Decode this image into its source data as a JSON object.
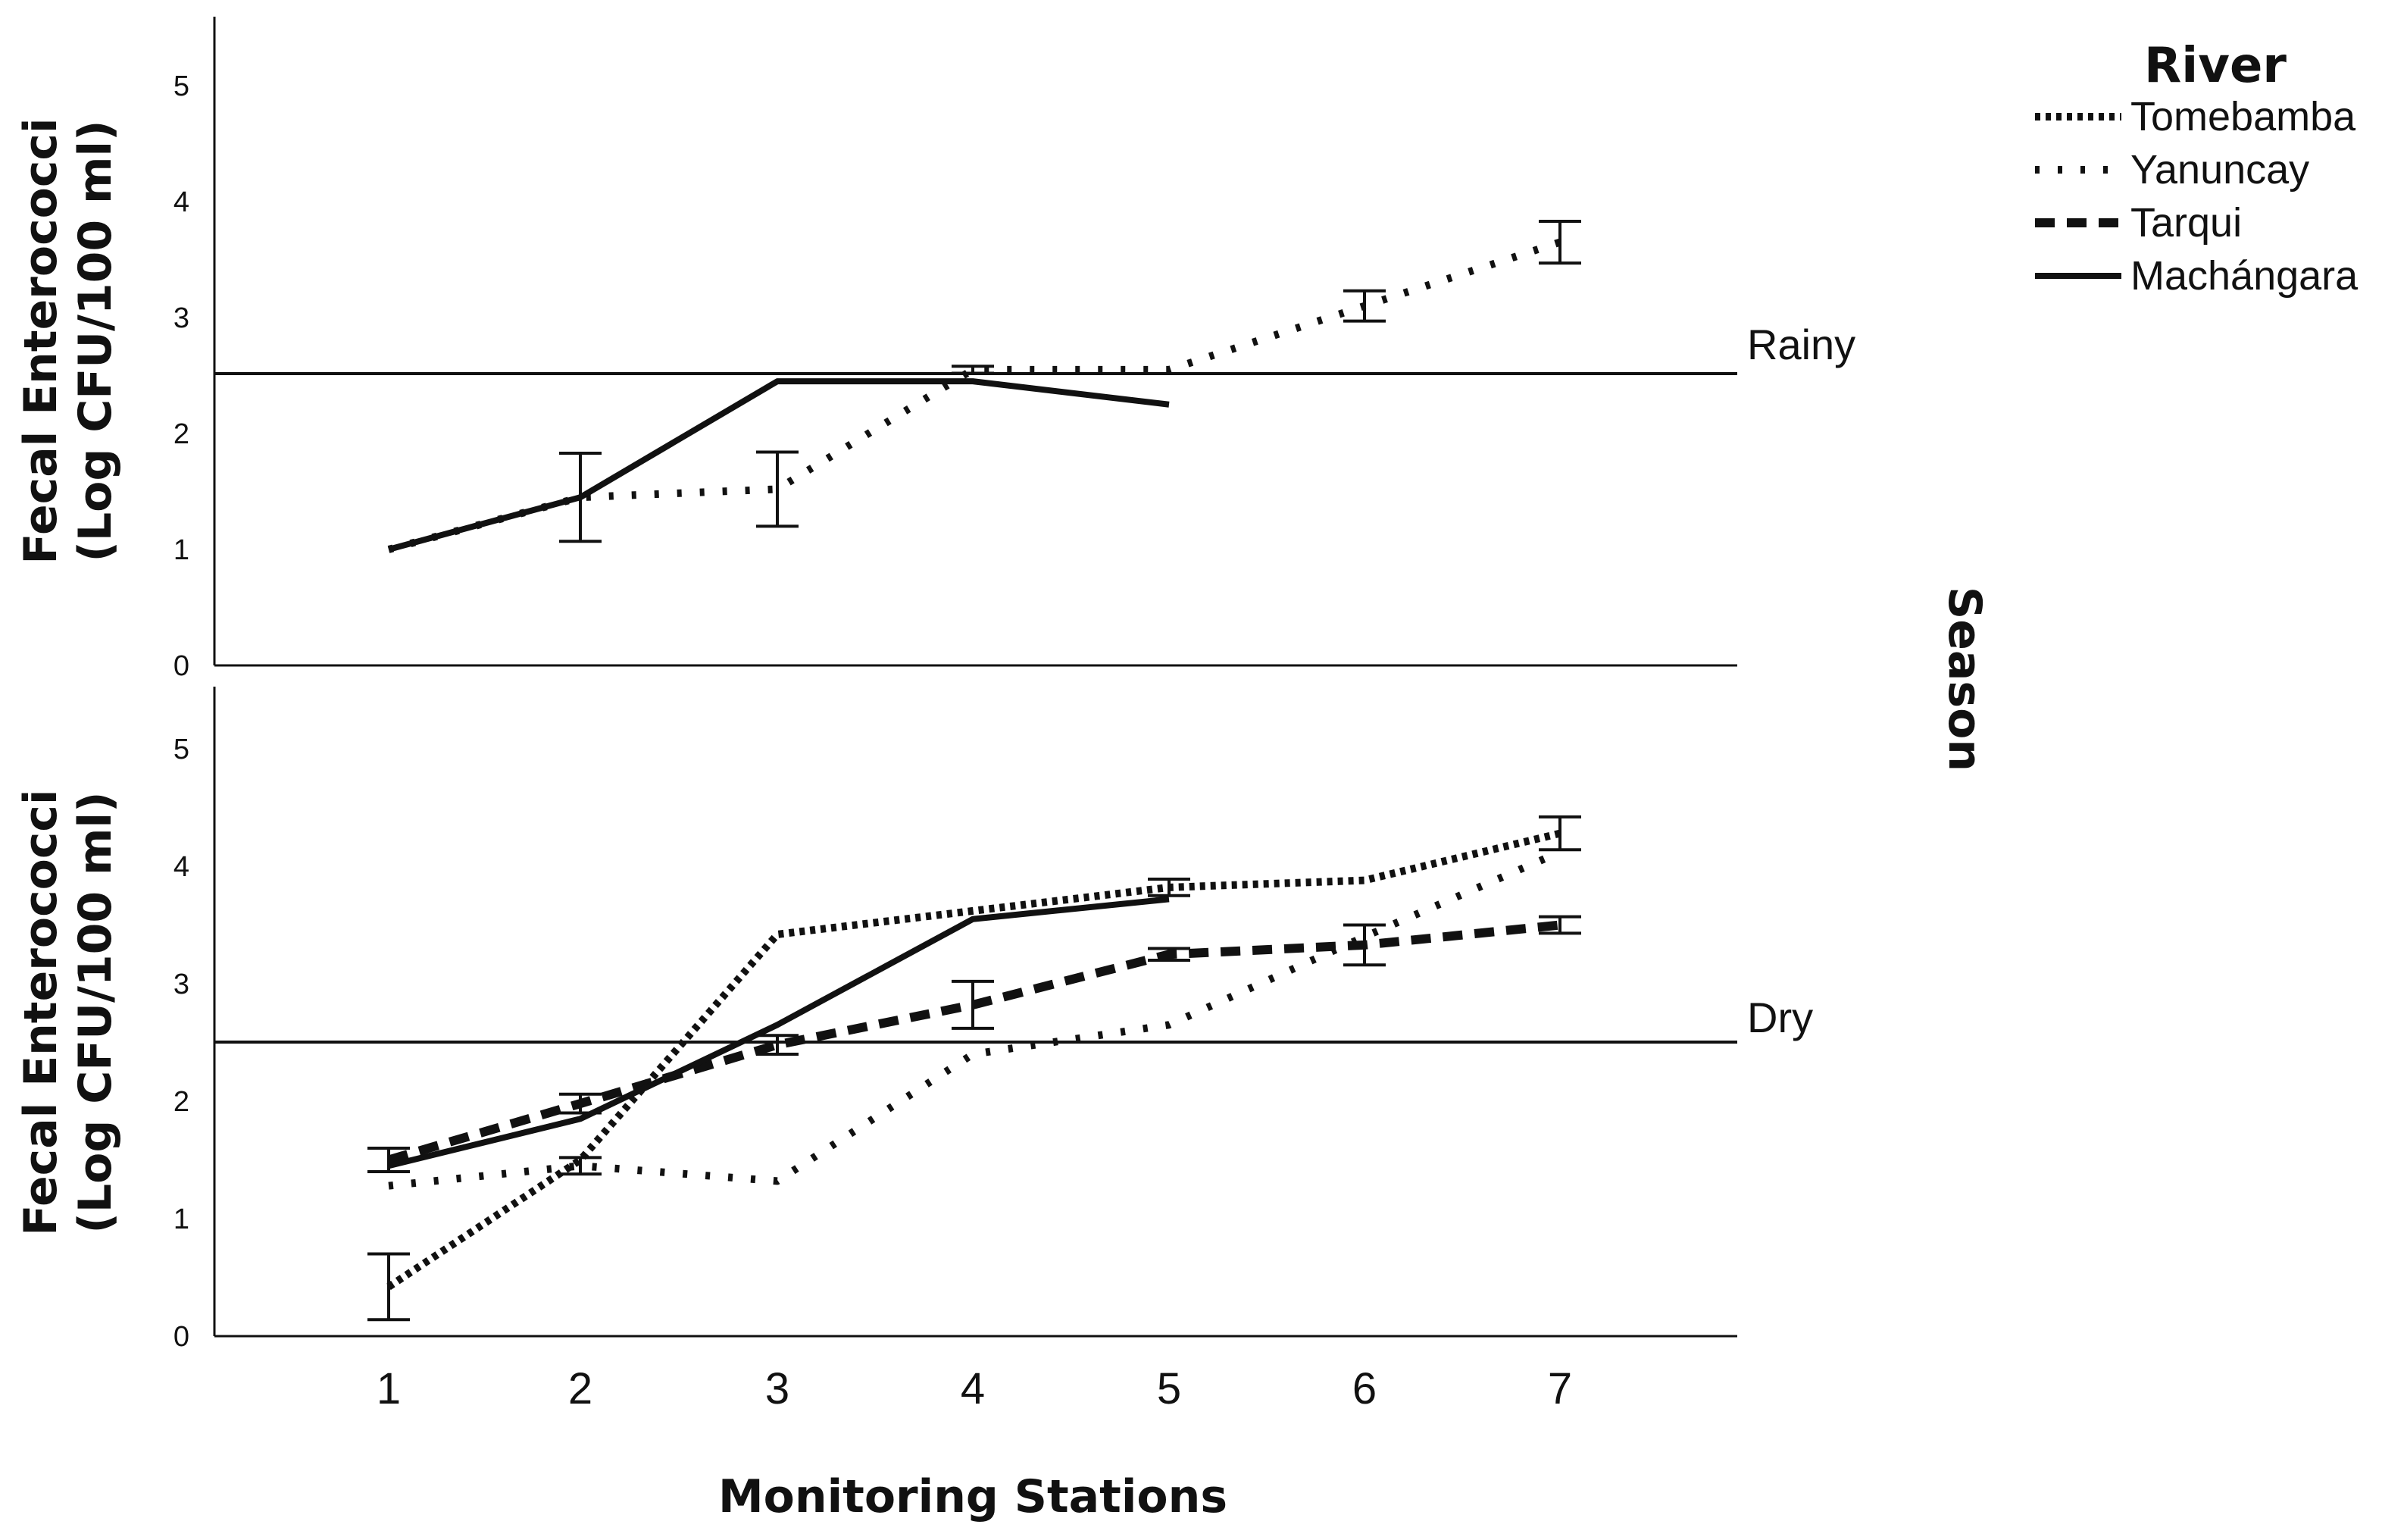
{
  "chart_data": {
    "type": "line",
    "facet_title": "Season",
    "xlabel": "Monitoring Stations",
    "ylabel_line1": "Fecal Enterococci",
    "ylabel_line2": "(Log CFU/100 ml)",
    "legend_title": "River",
    "legend_position": "top-right",
    "x": [
      1,
      2,
      3,
      4,
      5,
      6,
      7
    ],
    "x_tick_labels": [
      "1",
      "2",
      "3",
      "4",
      "5",
      "6",
      "7"
    ],
    "y_ticks": [
      0,
      1,
      2,
      3,
      4,
      5
    ],
    "y_tick_labels": [
      "0",
      "1",
      "2",
      "3",
      "4",
      "5"
    ],
    "ylim": [
      0,
      5.5
    ],
    "reference_value": 2.5,
    "series_styles": [
      {
        "name": "Tomebamba",
        "dash": "dense-dotted"
      },
      {
        "name": "Yanuncay",
        "dash": "sparse-dotted"
      },
      {
        "name": "Tarqui",
        "dash": "dashed"
      },
      {
        "name": "Machángara",
        "dash": "solid"
      }
    ],
    "panels": [
      {
        "label": "Rainy",
        "series": [
          {
            "name": "Tomebamba",
            "points": []
          },
          {
            "name": "Yanuncay",
            "points": [
              {
                "x": 1,
                "y": 1.0
              },
              {
                "x": 2,
                "y": 1.45,
                "err": 0.38
              },
              {
                "x": 3,
                "y": 1.52,
                "err": 0.32
              },
              {
                "x": 4,
                "y": 2.55,
                "err": 0.03
              },
              {
                "x": 5,
                "y": 2.55
              },
              {
                "x": 6,
                "y": 3.1,
                "err": 0.13
              },
              {
                "x": 7,
                "y": 3.65,
                "err": 0.18
              }
            ]
          },
          {
            "name": "Tarqui",
            "points": []
          },
          {
            "name": "Machángara",
            "points": [
              {
                "x": 1,
                "y": 1.0
              },
              {
                "x": 2,
                "y": 1.45
              },
              {
                "x": 3,
                "y": 2.45
              },
              {
                "x": 4,
                "y": 2.45
              },
              {
                "x": 5,
                "y": 2.25
              }
            ]
          }
        ]
      },
      {
        "label": "Dry",
        "series": [
          {
            "name": "Tomebamba",
            "points": [
              {
                "x": 1,
                "y": 0.42,
                "err": 0.28
              },
              {
                "x": 2,
                "y": 1.5
              },
              {
                "x": 3,
                "y": 3.42
              },
              {
                "x": 4,
                "y": 3.62
              },
              {
                "x": 5,
                "y": 3.82,
                "err": 0.07
              },
              {
                "x": 6,
                "y": 3.88
              },
              {
                "x": 7,
                "y": 4.28,
                "err": 0.14
              }
            ]
          },
          {
            "name": "Yanuncay",
            "points": [
              {
                "x": 1,
                "y": 1.28
              },
              {
                "x": 2,
                "y": 1.45,
                "err": 0.07
              },
              {
                "x": 3,
                "y": 1.32
              },
              {
                "x": 4,
                "y": 2.4
              },
              {
                "x": 5,
                "y": 2.65
              },
              {
                "x": 6,
                "y": 3.4
              },
              {
                "x": 7,
                "y": 4.12
              }
            ]
          },
          {
            "name": "Tarqui",
            "points": [
              {
                "x": 1,
                "y": 1.5,
                "err": 0.1
              },
              {
                "x": 2,
                "y": 1.98,
                "err": 0.08
              },
              {
                "x": 3,
                "y": 2.48,
                "err": 0.08
              },
              {
                "x": 4,
                "y": 2.82,
                "err": 0.2
              },
              {
                "x": 5,
                "y": 3.25,
                "err": 0.05
              },
              {
                "x": 6,
                "y": 3.33,
                "err": 0.17
              },
              {
                "x": 7,
                "y": 3.5,
                "err": 0.07
              }
            ]
          },
          {
            "name": "Machángara",
            "points": [
              {
                "x": 1,
                "y": 1.45
              },
              {
                "x": 2,
                "y": 1.85
              },
              {
                "x": 3,
                "y": 2.65
              },
              {
                "x": 4,
                "y": 3.55
              },
              {
                "x": 5,
                "y": 3.72
              }
            ]
          }
        ]
      }
    ]
  }
}
